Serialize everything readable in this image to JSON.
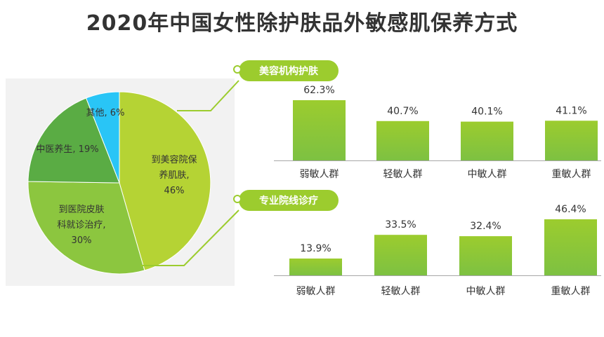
{
  "title": "2020年中国女性除护肤品外敏感肌保养方式",
  "colors": {
    "pie_slices": [
      "#b5d334",
      "#8cc63f",
      "#5aac44",
      "#29c5f6"
    ],
    "bar_top": "#9ccc2e",
    "bar_bottom": "#7dc142",
    "pill": "#9ccc2e",
    "connector": "#9ccc2e"
  },
  "chart_data": [
    {
      "type": "pie",
      "title": "",
      "slices": [
        {
          "label_lines": [
            "到美容院保",
            "养肌肤,"
          ],
          "pct_text": "46%",
          "value": 46
        },
        {
          "label_lines": [
            "到医院皮肤",
            "科就诊治疗,"
          ],
          "pct_text": "30%",
          "value": 30
        },
        {
          "label_lines": [
            "中医养生, 19%"
          ],
          "pct_text": "",
          "value": 19
        },
        {
          "label_lines": [
            "其他, 6%"
          ],
          "pct_text": "",
          "value": 6
        }
      ]
    },
    {
      "type": "bar",
      "title": "美容机构护肤",
      "categories": [
        "弱敏人群",
        "轻敏人群",
        "中敏人群",
        "重敏人群"
      ],
      "values": [
        62.3,
        40.7,
        40.1,
        41.1
      ],
      "labels": [
        "62.3%",
        "40.7%",
        "40.1%",
        "41.1%"
      ],
      "ylim": [
        0,
        62.3
      ]
    },
    {
      "type": "bar",
      "title": "专业院线诊疗",
      "categories": [
        "弱敏人群",
        "轻敏人群",
        "中敏人群",
        "重敏人群"
      ],
      "values": [
        13.9,
        33.5,
        32.4,
        46.4
      ],
      "labels": [
        "13.9%",
        "33.5%",
        "32.4%",
        "46.4%"
      ],
      "ylim": [
        0,
        46.4
      ]
    }
  ]
}
